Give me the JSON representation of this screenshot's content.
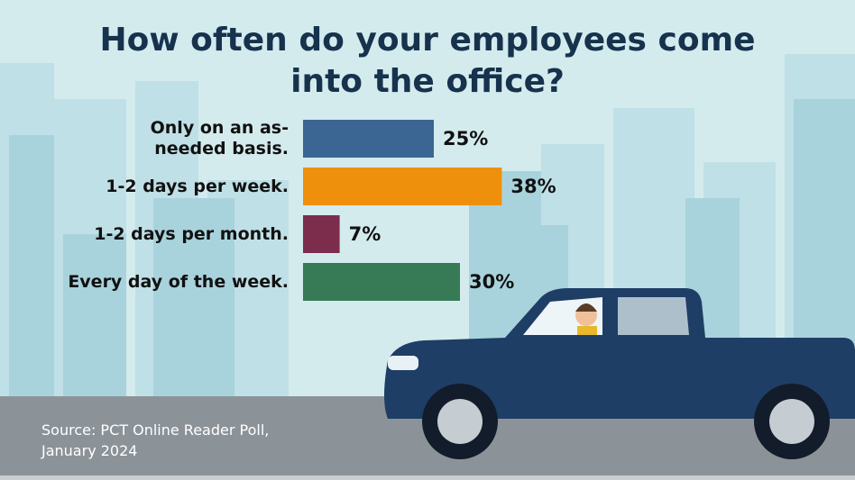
{
  "chart_data": {
    "type": "bar",
    "orientation": "horizontal",
    "title": "How often do your employees come into the office?",
    "categories": [
      "Only on an as-needed basis.",
      "1-2 days per week.",
      "1-2 days per month.",
      "Every day of the week."
    ],
    "values": [
      25,
      38,
      7,
      30
    ],
    "value_labels": [
      "25%",
      "38%",
      "7%",
      "30%"
    ],
    "colors": [
      "#3b6592",
      "#ef900c",
      "#7b2d4b",
      "#367a56"
    ],
    "source": "Source: PCT Online Reader Poll, January 2024"
  }
}
